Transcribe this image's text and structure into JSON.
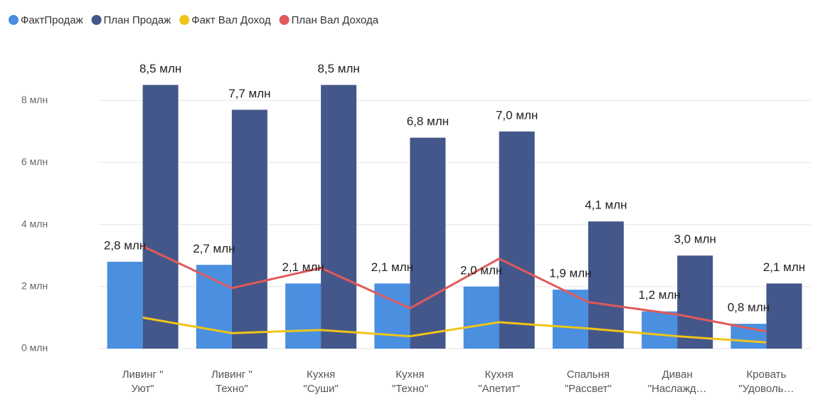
{
  "chart_data": {
    "type": "bar-line",
    "categories": [
      "Ливинг \"\nУют\"",
      "Ливинг \"\nТехно\"",
      "Кухня\n\"Суши\"",
      "Кухня\n\"Техно\"",
      "Кухня\n\"Апетит\"",
      "Спальня\n\"Рассвет\"",
      "Диван\n\"Наслажд…",
      "Кровать\n\"Удоволь…"
    ],
    "series": [
      {
        "name": "ФактПродаж",
        "kind": "bar",
        "color": "#4a8fe0",
        "values": [
          2.8,
          2.7,
          2.1,
          2.1,
          2.0,
          1.9,
          1.2,
          0.8
        ],
        "value_labels": [
          "2,8 млн",
          "2,7 млн",
          "2,1 млн",
          "2,1 млн",
          "2,0 млн",
          "1,9 млн",
          "1,2 млн",
          "0,8 млн"
        ]
      },
      {
        "name": "План Продаж",
        "kind": "bar",
        "color": "#44578a",
        "values": [
          8.5,
          7.7,
          8.5,
          6.8,
          7.0,
          4.1,
          3.0,
          2.1
        ],
        "value_labels": [
          "8,5 млн",
          "7,7 млн",
          "8,5 млн",
          "6,8 млн",
          "7,0 млн",
          "4,1 млн",
          "3,0 млн",
          "2,1 млн"
        ]
      },
      {
        "name": "Факт Вал Доход",
        "kind": "line",
        "color": "#f0c419",
        "values": [
          1.0,
          0.5,
          0.6,
          0.4,
          0.85,
          0.65,
          0.4,
          0.2
        ]
      },
      {
        "name": "План Вал Дохода",
        "kind": "line",
        "color": "#e05a5a",
        "values": [
          3.3,
          1.95,
          2.6,
          1.3,
          2.9,
          1.5,
          1.1,
          0.55
        ]
      }
    ],
    "ylim": [
      0,
      9
    ],
    "yticks": [
      {
        "value": 0,
        "label": "0 млн"
      },
      {
        "value": 2,
        "label": "2 млн"
      },
      {
        "value": 4,
        "label": "4 млн"
      },
      {
        "value": 6,
        "label": "6 млн"
      },
      {
        "value": 8,
        "label": "8 млн"
      }
    ],
    "grid": true
  }
}
